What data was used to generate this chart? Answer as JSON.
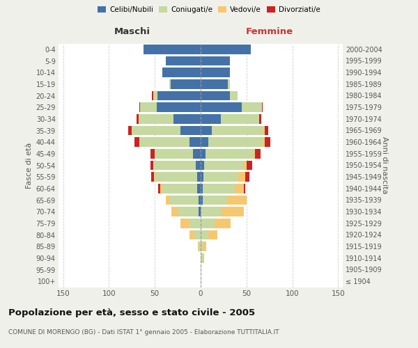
{
  "age_groups": [
    "100+",
    "95-99",
    "90-94",
    "85-89",
    "80-84",
    "75-79",
    "70-74",
    "65-69",
    "60-64",
    "55-59",
    "50-54",
    "45-49",
    "40-44",
    "35-39",
    "30-34",
    "25-29",
    "20-24",
    "15-19",
    "10-14",
    "5-9",
    "0-4"
  ],
  "birth_years": [
    "≤ 1904",
    "1905-1909",
    "1910-1914",
    "1915-1919",
    "1920-1924",
    "1925-1929",
    "1930-1934",
    "1935-1939",
    "1940-1944",
    "1945-1949",
    "1950-1954",
    "1955-1959",
    "1960-1964",
    "1965-1969",
    "1970-1974",
    "1975-1979",
    "1980-1984",
    "1985-1989",
    "1990-1994",
    "1995-1999",
    "2000-2004"
  ],
  "male": {
    "celibi": [
      0,
      0,
      0,
      0,
      0,
      0,
      2,
      2,
      4,
      4,
      5,
      8,
      12,
      22,
      30,
      48,
      47,
      33,
      42,
      38,
      62
    ],
    "coniugati": [
      0,
      0,
      0,
      2,
      7,
      12,
      22,
      32,
      38,
      46,
      46,
      42,
      55,
      53,
      38,
      18,
      5,
      1,
      0,
      0,
      0
    ],
    "vedovi": [
      0,
      0,
      0,
      1,
      5,
      10,
      8,
      4,
      2,
      1,
      1,
      0,
      0,
      0,
      0,
      0,
      0,
      0,
      0,
      0,
      0
    ],
    "divorziati": [
      0,
      0,
      0,
      0,
      0,
      0,
      0,
      0,
      2,
      3,
      3,
      5,
      5,
      4,
      2,
      1,
      1,
      0,
      0,
      0,
      0
    ]
  },
  "female": {
    "nubili": [
      0,
      0,
      0,
      0,
      0,
      0,
      0,
      2,
      2,
      3,
      4,
      5,
      8,
      12,
      22,
      45,
      32,
      30,
      32,
      32,
      55
    ],
    "coniugate": [
      0,
      0,
      2,
      2,
      8,
      15,
      22,
      28,
      35,
      38,
      42,
      52,
      60,
      57,
      42,
      22,
      8,
      2,
      0,
      0,
      0
    ],
    "vedove": [
      0,
      0,
      2,
      4,
      10,
      18,
      25,
      20,
      10,
      8,
      4,
      2,
      2,
      1,
      0,
      0,
      0,
      0,
      0,
      0,
      0
    ],
    "divorziate": [
      0,
      0,
      0,
      0,
      0,
      0,
      0,
      0,
      2,
      4,
      6,
      6,
      6,
      4,
      2,
      1,
      0,
      0,
      0,
      0,
      0
    ]
  },
  "colors": {
    "celibi": "#4472a8",
    "coniugati": "#c5d9a0",
    "vedovi": "#f5c870",
    "divorziati": "#cc2222"
  },
  "xlim": 155,
  "title": "Popolazione per età, sesso e stato civile - 2005",
  "subtitle": "COMUNE DI MORENGO (BG) - Dati ISTAT 1° gennaio 2005 - Elaborazione TUTTITALIA.IT",
  "ylabel_left": "Fasce di età",
  "ylabel_right": "Anni di nascita",
  "xlabel_left": "Maschi",
  "xlabel_right": "Femmine",
  "bg_color": "#f0f0eb",
  "plot_bg": "#ffffff"
}
